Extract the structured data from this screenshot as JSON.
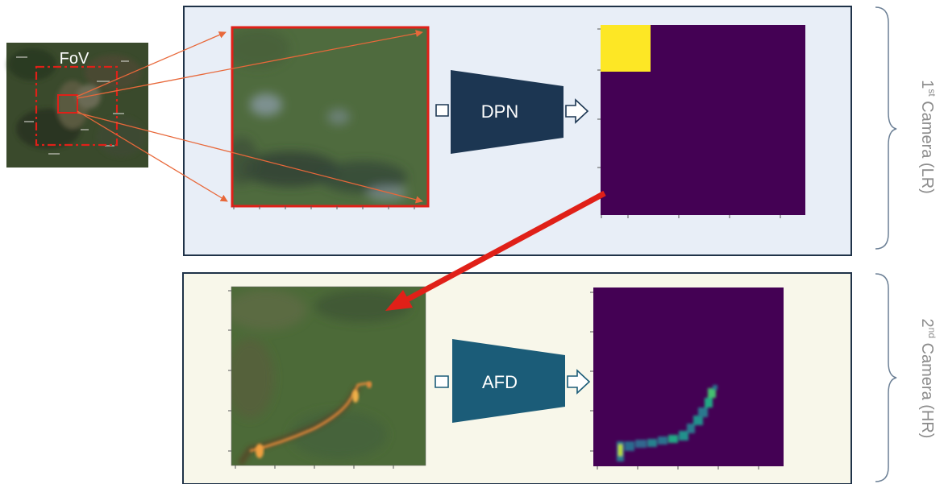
{
  "fov": {
    "label": "FoV"
  },
  "blocks": {
    "dpn": {
      "label": "DPN"
    },
    "afd": {
      "label": "AFD"
    }
  },
  "cameras": {
    "first": {
      "ordinal": "1",
      "superscript": "st",
      "text": " Camera (LR)"
    },
    "second": {
      "ordinal": "2",
      "superscript": "nd",
      "text": " Camera (HR)"
    }
  },
  "colors": {
    "panel_top_bg": "#e8eef7",
    "panel_bottom_bg": "#f8f7ea",
    "panel_border": "#1f3248",
    "selection_red": "#e02018",
    "zoom_lines": "#e8683a",
    "dpn_fill": "#1c3652",
    "afd_fill": "#1b5c78",
    "viridis_low": "#440154",
    "viridis_high": "#fde725",
    "camera_text": "#8c8c8c",
    "brace": "#6b7f95"
  },
  "icons": [
    "hollow-arrow-icon",
    "brace-icon"
  ]
}
